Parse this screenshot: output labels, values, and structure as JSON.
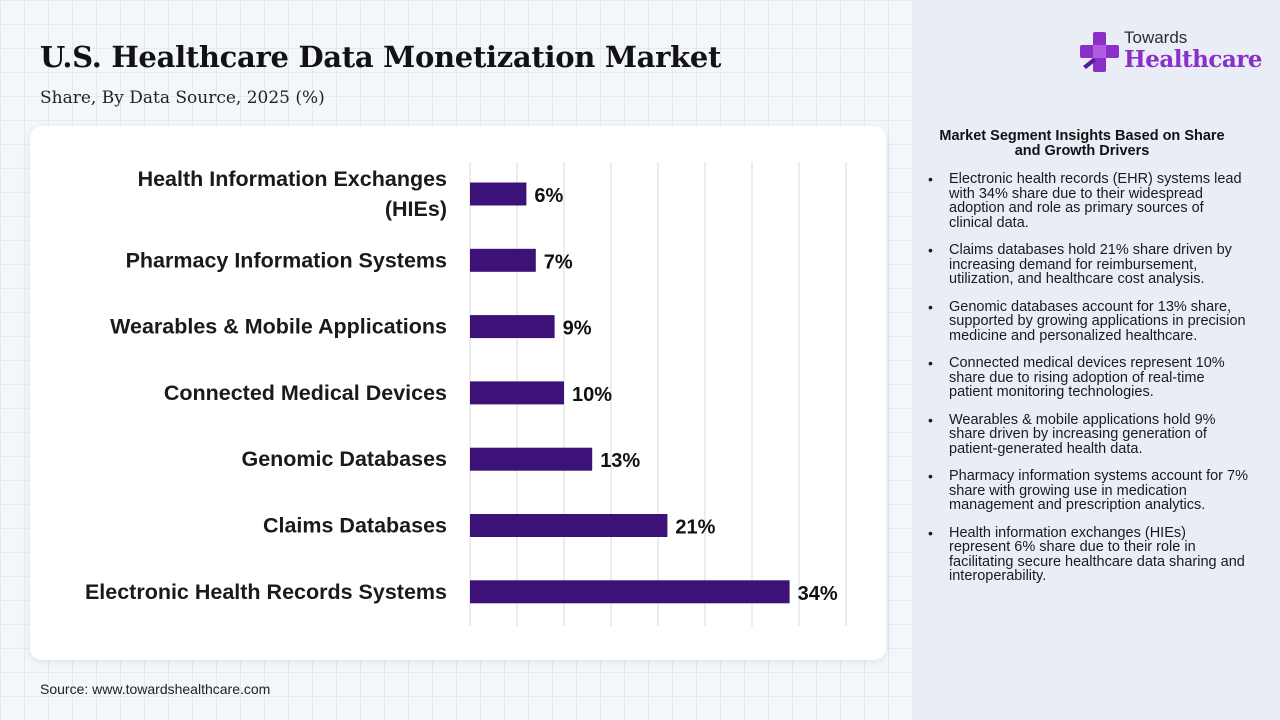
{
  "header": {
    "title": "U.S. Healthcare Data Monetization Market",
    "subtitle": "Share, By Data Source, 2025 (%)"
  },
  "footer": {
    "source": "Source: www.towardshealthcare.com"
  },
  "logo": {
    "top": "Towards",
    "main": "Healthcare",
    "icon": "plus-cross-icon"
  },
  "colors": {
    "bar": "#3d1278",
    "accent": "#8b2fc9",
    "grid": "#d9d9d9"
  },
  "chart_data": {
    "type": "bar",
    "orientation": "horizontal",
    "categories": [
      "Health Information Exchanges (HIEs)",
      "Pharmacy Information Systems",
      "Wearables & Mobile Applications",
      "Connected Medical Devices",
      "Genomic Databases",
      "Claims Databases",
      "Electronic Health Records Systems"
    ],
    "values": [
      6,
      7,
      9,
      10,
      13,
      21,
      34
    ],
    "data_labels": [
      "6%",
      "7%",
      "9%",
      "10%",
      "13%",
      "21%",
      "34%"
    ],
    "xlim": [
      0,
      40
    ],
    "grid": true
  },
  "insights": {
    "title": "Market Segment Insights Based on Share and Growth Drivers",
    "items": [
      "Electronic health records (EHR) systems lead with 34% share due to their widespread adoption and role as primary sources of clinical data.",
      "Claims databases hold 21% share driven by increasing demand for reimbursement, utilization, and healthcare cost analysis.",
      "Genomic databases account for 13% share, supported by growing applications in precision medicine and personalized healthcare.",
      "Connected medical devices represent 10% share due to rising adoption of real-time patient monitoring technologies.",
      "Wearables & mobile applications hold 9% share driven by increasing generation of patient-generated health data.",
      "Pharmacy information systems account for 7% share with growing use in medication management and prescription analytics.",
      "Health information exchanges (HIEs) represent 6% share due to their role in facilitating secure healthcare data sharing and interoperability."
    ]
  }
}
